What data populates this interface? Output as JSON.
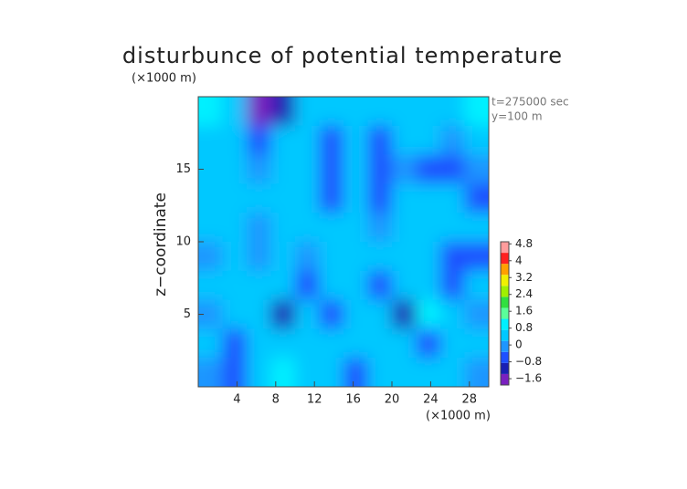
{
  "chart_data": {
    "type": "contour",
    "title": "disturbunce of potential temperature",
    "y_unit": "(×1000 m)",
    "x_unit": "(×1000 m)",
    "ylabel": "z−coordinate",
    "annotations": [
      "t=275000 sec",
      "y=100 m"
    ],
    "xlim": [
      0,
      30
    ],
    "ylim": [
      0,
      20
    ],
    "xticks": [
      4,
      8,
      12,
      16,
      20,
      24,
      28
    ],
    "yticks": [
      5,
      10,
      15
    ],
    "field": {
      "values": [
        [
          1.0,
          0.4,
          -1.6,
          -1.2,
          0.6,
          0.3,
          0.2,
          0.4,
          0.3,
          0.2,
          0.4,
          1.0
        ],
        [
          0.3,
          0.2,
          -0.5,
          0.3,
          0.2,
          -0.5,
          0.4,
          -0.6,
          0.3,
          0.2,
          -0.2,
          0.3
        ],
        [
          0.2,
          0.3,
          0.0,
          0.3,
          0.4,
          -0.6,
          0.3,
          -0.6,
          -0.3,
          -0.6,
          -0.6,
          -0.3
        ],
        [
          0.3,
          0.2,
          0.4,
          0.2,
          0.3,
          -0.5,
          0.2,
          -0.5,
          0.5,
          0.6,
          0.3,
          -0.5
        ],
        [
          0.2,
          0.5,
          -0.3,
          0.6,
          0.3,
          0.2,
          0.5,
          -0.3,
          0.6,
          0.6,
          0.2,
          0.2
        ],
        [
          0.1,
          0.3,
          -0.3,
          0.4,
          0.0,
          0.6,
          0.4,
          0.2,
          0.3,
          0.3,
          -0.5,
          -0.4
        ],
        [
          0.3,
          0.2,
          0.6,
          0.3,
          -0.4,
          0.2,
          0.3,
          -0.4,
          0.3,
          0.4,
          -0.6,
          0.2
        ],
        [
          -0.3,
          0.3,
          0.4,
          -1.0,
          0.4,
          -0.5,
          0.3,
          0.3,
          -0.9,
          0.9,
          0.4,
          -0.2
        ],
        [
          0.3,
          -0.4,
          0.5,
          0.4,
          0.3,
          0.6,
          0.2,
          0.5,
          0.3,
          -0.5,
          0.2,
          0.3
        ],
        [
          -0.3,
          -0.5,
          0.2,
          0.8,
          0.3,
          0.4,
          -0.4,
          0.3,
          0.2,
          0.3,
          0.4,
          -0.2
        ]
      ]
    },
    "colorbar": {
      "clim": [
        -1.9,
        4.9
      ],
      "colors": [
        "#7a20c0",
        "#1a20b4",
        "#1e50ff",
        "#1e96ff",
        "#00c8ff",
        "#00f0ff",
        "#5aff9a",
        "#30e040",
        "#a0f000",
        "#f0f000",
        "#ffa000",
        "#ff2020",
        "#ff9c9c"
      ],
      "ticks": [
        {
          "value": 4.8,
          "label": "4.8"
        },
        4,
        {
          "value": 3.2,
          "label": "3.2"
        },
        {
          "value": 2.4,
          "label": "2.4"
        },
        {
          "value": 1.6,
          "label": "1.6"
        },
        {
          "value": 0.8,
          "label": "0.8"
        },
        0,
        {
          "value": -0.8,
          "label": "−0.8"
        },
        {
          "value": -1.6,
          "label": "−1.6"
        }
      ]
    }
  }
}
